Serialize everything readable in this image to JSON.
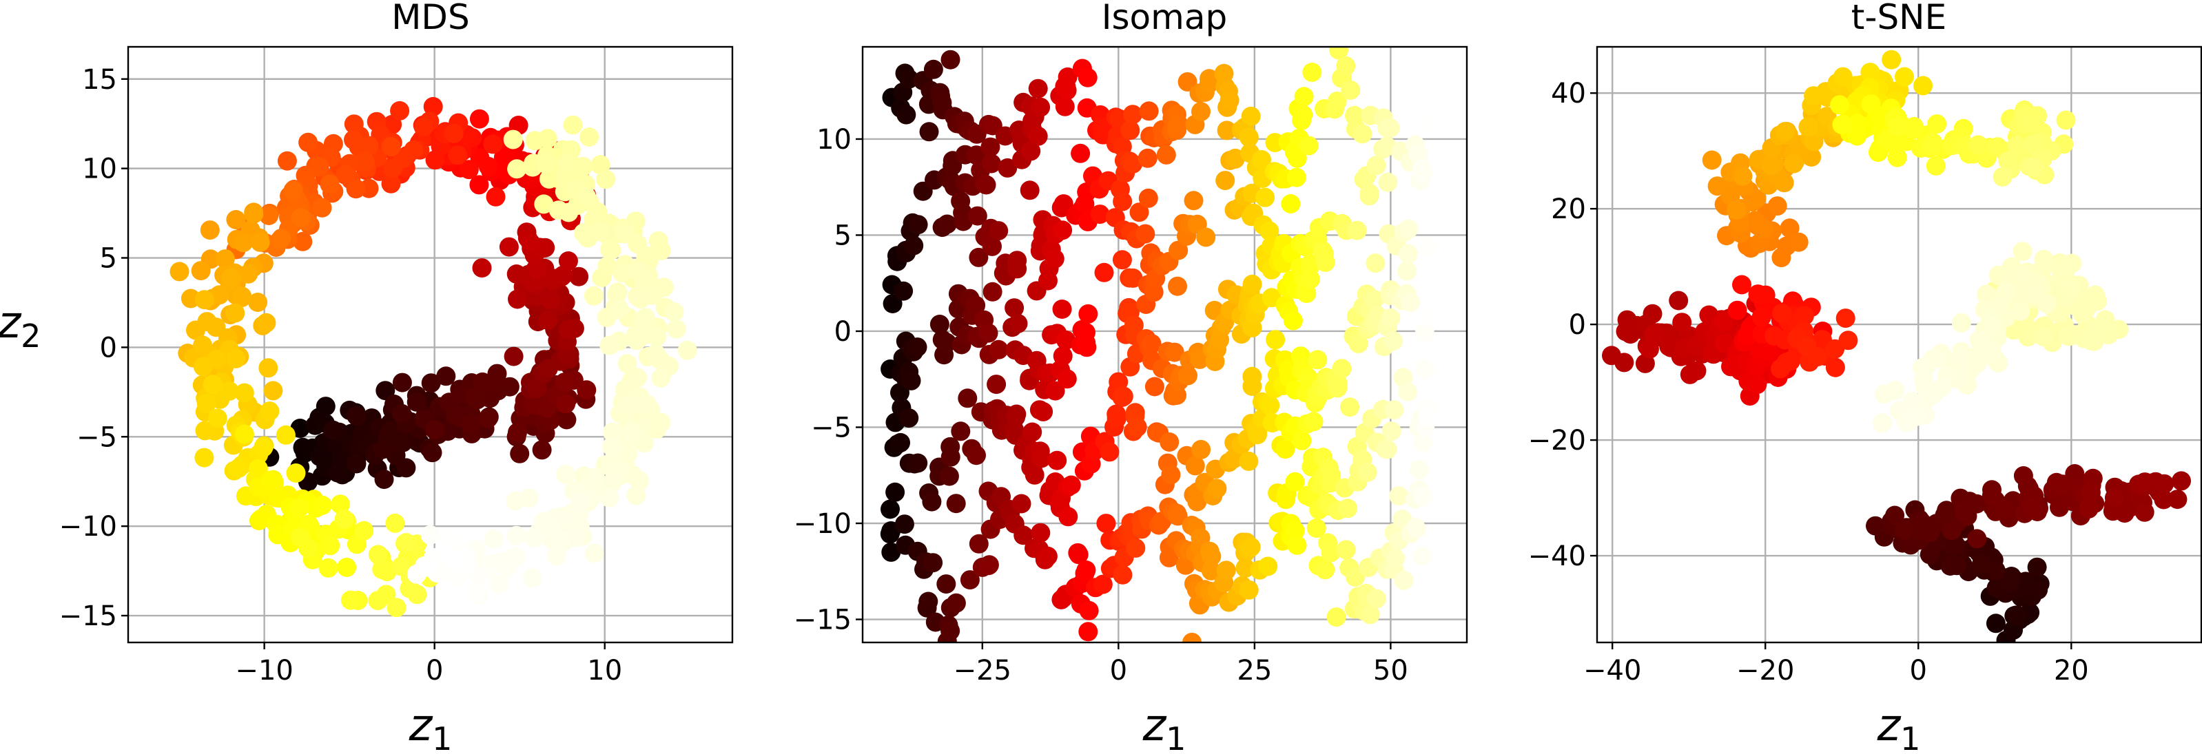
{
  "chart_data": [
    {
      "type": "scatter",
      "title": "MDS",
      "xlabel": "z",
      "xlabel_sub": "1",
      "ylabel": "z",
      "ylabel_sub": "2",
      "xlim": [
        -18,
        17.5
      ],
      "ylim": [
        -16.5,
        16.8
      ],
      "xticks": [
        -10,
        0,
        10
      ],
      "xtick_labels": [
        "−10",
        "0",
        "10"
      ],
      "yticks": [
        -15,
        -10,
        -5,
        0,
        5,
        10,
        15
      ],
      "ytick_labels": [
        "−15",
        "−10",
        "−5",
        "0",
        "5",
        "10",
        "15"
      ],
      "grid": true,
      "colormap": "hot",
      "color_variable": "t",
      "segments": [
        {
          "type": "arc",
          "cx": 0,
          "cy": 0,
          "r": 12.5,
          "from_deg": -90,
          "to_deg": -10,
          "t_from": 1.0,
          "t_to": 0.95,
          "noise": 1.8,
          "count": 110
        },
        {
          "type": "arc",
          "cx": 0,
          "cy": 0,
          "r": 12.5,
          "from_deg": 0,
          "to_deg": 60,
          "t_from": 0.95,
          "t_to": 0.9,
          "noise": 2.2,
          "count": 110
        },
        {
          "type": "arc",
          "cx": 0,
          "cy": 0,
          "r": 12.5,
          "from_deg": 150,
          "to_deg": 270,
          "t_from": 0.6,
          "t_to": 0.82,
          "noise": 2.0,
          "count": 170
        },
        {
          "type": "arc",
          "cx": 0,
          "cy": 0,
          "r": 11.5,
          "from_deg": 45,
          "to_deg": 150,
          "t_from": 0.3,
          "t_to": 0.55,
          "noise": 2.0,
          "count": 170
        },
        {
          "type": "arc",
          "cx": 0,
          "cy": 0,
          "r": 7.5,
          "from_deg": -40,
          "to_deg": 45,
          "t_from": 0.12,
          "t_to": 0.28,
          "noise": 1.8,
          "count": 120
        },
        {
          "type": "line",
          "x0": -7,
          "y0": -6,
          "x1": 3,
          "y1": -3,
          "t_from": 0.0,
          "t_to": 0.12,
          "noise": 2.0,
          "count": 150
        }
      ]
    },
    {
      "type": "scatter",
      "title": "Isomap",
      "xlabel": "z",
      "xlabel_sub": "1",
      "ylabel": "",
      "xlim": [
        -47,
        64
      ],
      "ylim": [
        -16.2,
        14.8
      ],
      "xticks": [
        -25,
        0,
        25,
        50
      ],
      "xtick_labels": [
        "−25",
        "0",
        "25",
        "50"
      ],
      "yticks": [
        -15,
        -10,
        -5,
        0,
        5,
        10
      ],
      "ytick_labels": [
        "−15",
        "−10",
        "−5",
        "0",
        "5",
        "10"
      ],
      "grid": true,
      "colormap": "hot",
      "color_variable": "x",
      "x_range": [
        -42,
        57
      ],
      "y_range": [
        -14.5,
        13.5
      ],
      "count": 800
    },
    {
      "type": "scatter",
      "title": "t-SNE",
      "xlabel": "z",
      "xlabel_sub": "1",
      "ylabel": "",
      "xlim": [
        -42,
        37
      ],
      "ylim": [
        -55,
        48
      ],
      "xticks": [
        -40,
        -20,
        0,
        20
      ],
      "xtick_labels": [
        "−40",
        "−20",
        "0",
        "20"
      ],
      "yticks": [
        -40,
        -20,
        0,
        20,
        40
      ],
      "ytick_labels": [
        "−40",
        "−20",
        "0",
        "20",
        "40"
      ],
      "grid": true,
      "colormap": "hot",
      "color_variable": "t",
      "clusters": [
        {
          "path": [
            [
              11,
              -52
            ],
            [
              14,
              -45
            ],
            [
              6,
              -40
            ],
            [
              -3,
              -35
            ],
            [
              5,
              -33
            ],
            [
              15,
              -30
            ],
            [
              22,
              -29
            ],
            [
              28,
              -30
            ],
            [
              33,
              -28
            ]
          ],
          "t_from": 0.02,
          "t_to": 0.22,
          "noise": 1.8,
          "count": 180
        },
        {
          "path": [
            [
              -37,
              -1
            ],
            [
              -30,
              -4
            ],
            [
              -24,
              0
            ],
            [
              -20,
              -8
            ],
            [
              -19,
              4
            ],
            [
              -14,
              -4
            ],
            [
              -12,
              -5
            ]
          ],
          "t_from": 0.25,
          "t_to": 0.42,
          "noise": 2.2,
          "count": 190
        },
        {
          "path": [
            [
              -20,
              14
            ],
            [
              -25,
              24
            ],
            [
              -16,
              30
            ],
            [
              -10,
              40
            ],
            [
              -3,
              41
            ],
            [
              -10,
              35
            ],
            [
              0,
              32
            ],
            [
              8,
              30
            ],
            [
              15,
              35
            ],
            [
              14,
              25
            ]
          ],
          "t_from": 0.55,
          "t_to": 0.88,
          "noise": 1.8,
          "count": 210
        },
        {
          "path": [
            [
              -3,
              -16
            ],
            [
              2,
              -10
            ],
            [
              8,
              -5
            ],
            [
              12,
              4
            ],
            [
              14,
              12
            ],
            [
              17,
              8
            ],
            [
              24,
              -2
            ],
            [
              14,
              0
            ],
            [
              10,
              8
            ]
          ],
          "t_from": 0.98,
          "t_to": 0.9,
          "noise": 1.8,
          "count": 160
        }
      ]
    }
  ]
}
